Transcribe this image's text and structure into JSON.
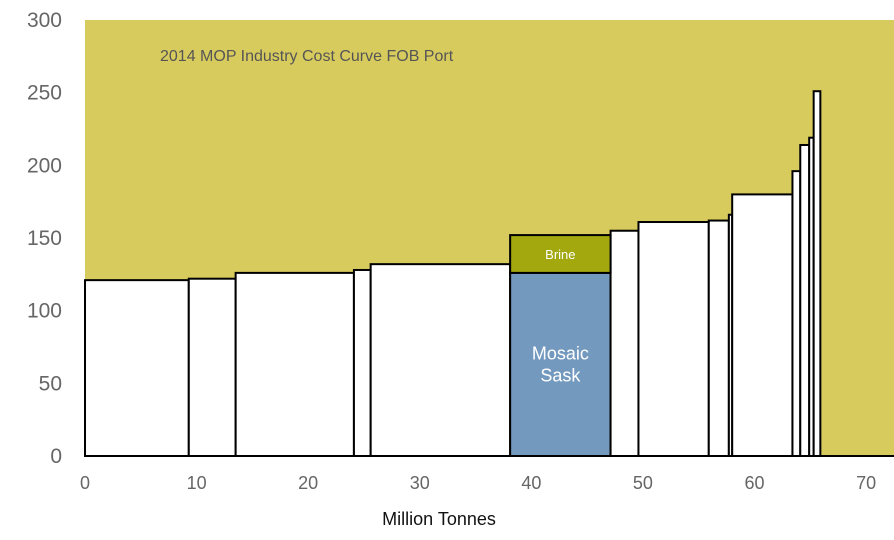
{
  "chart_data": {
    "type": "bar",
    "title": "2014 MOP Industry Cost Curve FOB Port",
    "xlabel": "Million Tonnes",
    "ylabel": "",
    "xlim": [
      0,
      72.5
    ],
    "ylim": [
      0,
      300
    ],
    "x_ticks": [
      "0",
      "10",
      "20",
      "30",
      "40",
      "50",
      "60",
      "70"
    ],
    "y_ticks": [
      "0",
      "50",
      "100",
      "150",
      "200",
      "250",
      "300"
    ],
    "grid": false,
    "background_color": "#D8CB5E",
    "segments": [
      {
        "x_start": 0,
        "x_end": 9.3,
        "value": 121
      },
      {
        "x_start": 9.3,
        "x_end": 13.5,
        "value": 122
      },
      {
        "x_start": 13.5,
        "x_end": 24.1,
        "value": 126
      },
      {
        "x_start": 24.1,
        "x_end": 25.6,
        "value": 128
      },
      {
        "x_start": 25.6,
        "x_end": 38.1,
        "value": 132
      },
      {
        "x_start": 38.1,
        "x_end": 47.1,
        "value": 126,
        "label_lines": [
          "Mosaic",
          "Sask"
        ],
        "color": "#7399BE"
      },
      {
        "x_start": 47.1,
        "x_end": 49.6,
        "value": 155
      },
      {
        "x_start": 49.6,
        "x_end": 55.9,
        "value": 161
      },
      {
        "x_start": 55.9,
        "x_end": 57.7,
        "value": 162
      },
      {
        "x_start": 57.7,
        "x_end": 58,
        "value": 166
      },
      {
        "x_start": 58,
        "x_end": 63.4,
        "value": 180
      },
      {
        "x_start": 63.4,
        "x_end": 64.1,
        "value": 196
      },
      {
        "x_start": 64.1,
        "x_end": 64.9,
        "value": 214
      },
      {
        "x_start": 64.9,
        "x_end": 65.3,
        "value": 219
      },
      {
        "x_start": 65.3,
        "x_end": 65.9,
        "value": 251
      }
    ],
    "stacked_segment": {
      "x_start": 38.1,
      "x_end": 47.1,
      "base": 126,
      "value": 152,
      "label": "Brine",
      "color": "#A2A80E"
    },
    "default_bar_color": "#FFFFFF",
    "outline_color": "#000000"
  }
}
